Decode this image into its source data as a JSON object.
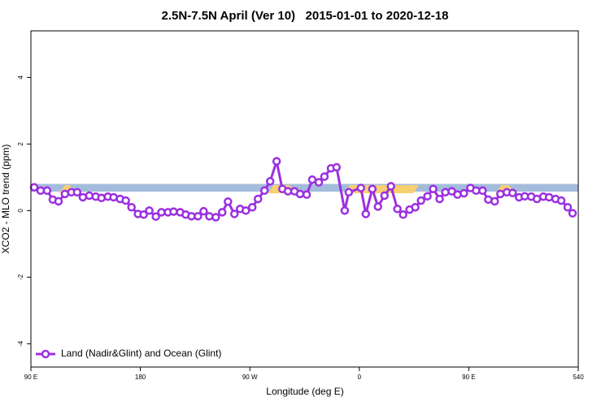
{
  "chart_data": {
    "type": "line",
    "title": "2.5N-7.5N April (Ver 10)   2015-01-01 to 2020-12-18",
    "xlabel": "Longitude (deg E)",
    "ylabel": "XCO2 - MLO trend (ppm)",
    "xlim": [
      90,
      540
    ],
    "ylim": [
      -4.7,
      5.4
    ],
    "xticks": [
      {
        "value": 90,
        "label": "90 E"
      },
      180,
      {
        "value": 270,
        "label": "90 W"
      },
      {
        "value": 360,
        "label": "0"
      },
      {
        "value": 450,
        "label": "90 E"
      },
      540
    ],
    "yticks": [
      -4,
      -2,
      0,
      2,
      4
    ],
    "band": [
      0.57,
      0.8
    ],
    "band_color": "#a4bcdc",
    "legend": "bottom-left",
    "series": [
      {
        "name": "Land (Nadir&Glint) and Ocean (Glint)",
        "color": "#9b30e0",
        "x": [
          92.7,
          98,
          103.3,
          108,
          112.7,
          118,
          123.3,
          128,
          132.7,
          138,
          143.3,
          148,
          153.3,
          158,
          163.3,
          168,
          172.7,
          178,
          182.7,
          187.3,
          192.7,
          197.3,
          202.7,
          207.3,
          212.7,
          217.3,
          222,
          227.3,
          232,
          236.7,
          242,
          247.3,
          252,
          257.3,
          262,
          266.7,
          272,
          276.7,
          282,
          286.7,
          292,
          296.7,
          301.3,
          306.7,
          311.3,
          316.7,
          321.3,
          326.7,
          331.3,
          336.7,
          341.3,
          348,
          351.3,
          361.3,
          365.3,
          370.7,
          375.3,
          380.7,
          386,
          391.3,
          396,
          401.3,
          406,
          410.7,
          416,
          420.7,
          426,
          430.7,
          436,
          440.7,
          446,
          451.3,
          456,
          461.3,
          466,
          471.3,
          476,
          481.3,
          486,
          491.3,
          496,
          501.3,
          506,
          511.3,
          516,
          521.3,
          526,
          531.3,
          535.3
        ],
        "values": [
          0.7,
          0.6,
          0.6,
          0.33,
          0.28,
          0.5,
          0.55,
          0.55,
          0.4,
          0.45,
          0.42,
          0.38,
          0.42,
          0.4,
          0.35,
          0.3,
          0.1,
          -0.1,
          -0.12,
          0.0,
          -0.18,
          -0.05,
          -0.05,
          -0.03,
          -0.05,
          -0.12,
          -0.17,
          -0.17,
          -0.02,
          -0.17,
          -0.2,
          -0.05,
          0.27,
          -0.1,
          0.05,
          0.0,
          0.1,
          0.35,
          0.6,
          0.88,
          1.48,
          0.65,
          0.58,
          0.58,
          0.5,
          0.48,
          0.93,
          0.85,
          1.02,
          1.27,
          1.3,
          0.0,
          0.55,
          0.68,
          -0.1,
          0.65,
          0.12,
          0.45,
          0.73,
          0.05,
          -0.12,
          0.03,
          0.1,
          0.3,
          0.43,
          0.65,
          0.35,
          0.55,
          0.58,
          0.48,
          0.52,
          0.68,
          0.6,
          0.6,
          0.33,
          0.28,
          0.5,
          0.55,
          0.53,
          0.4,
          0.43,
          0.42,
          0.35,
          0.42,
          0.4,
          0.35,
          0.3,
          0.1,
          -0.08
        ]
      }
    ]
  }
}
